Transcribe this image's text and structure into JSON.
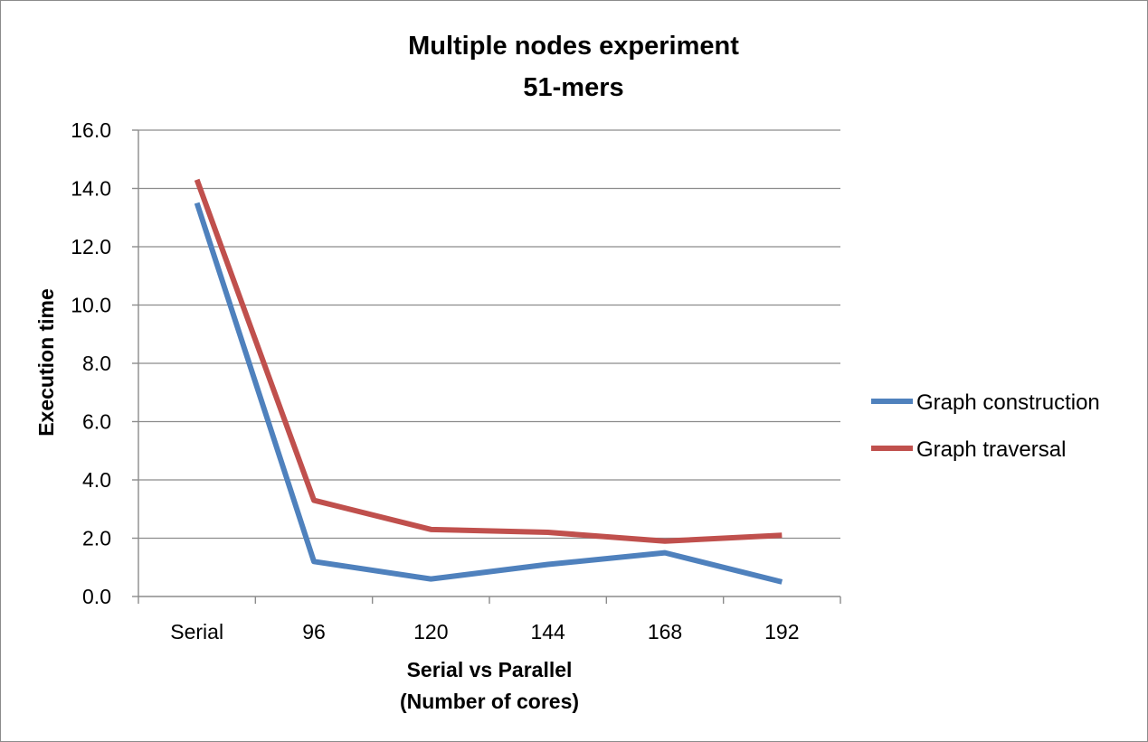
{
  "chart_data": {
    "type": "line",
    "title": [
      "Multiple nodes experiment",
      "51-mers"
    ],
    "xlabel": [
      "Serial vs Parallel",
      "(Number of cores)"
    ],
    "ylabel": "Execution time",
    "categories": [
      "Serial",
      "96",
      "120",
      "144",
      "168",
      "192"
    ],
    "ylim": [
      0,
      16
    ],
    "yticks": [
      0,
      2,
      4,
      6,
      8,
      10,
      12,
      14,
      16
    ],
    "ytick_labels": [
      "0.0",
      "2.0",
      "4.0",
      "6.0",
      "8.0",
      "10.0",
      "12.0",
      "14.0",
      "16.0"
    ],
    "grid": true,
    "legend_position": "right",
    "series": [
      {
        "name": "Graph construction",
        "color": "#4f81bd",
        "values": [
          13.5,
          1.2,
          0.6,
          1.1,
          1.5,
          0.5
        ]
      },
      {
        "name": "Graph traversal",
        "color": "#c0504d",
        "values": [
          14.3,
          3.3,
          2.3,
          2.2,
          1.9,
          2.1
        ]
      }
    ]
  }
}
